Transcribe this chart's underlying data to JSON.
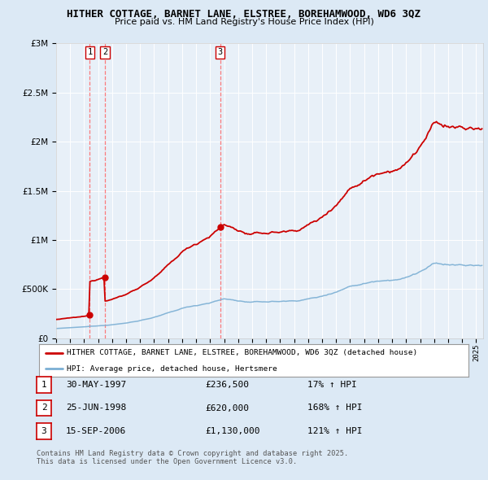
{
  "title1": "HITHER COTTAGE, BARNET LANE, ELSTREE, BOREHAMWOOD, WD6 3QZ",
  "title2": "Price paid vs. HM Land Registry's House Price Index (HPI)",
  "legend_line1": "HITHER COTTAGE, BARNET LANE, ELSTREE, BOREHAMWOOD, WD6 3QZ (detached house)",
  "legend_line2": "HPI: Average price, detached house, Hertsmere",
  "footer1": "Contains HM Land Registry data © Crown copyright and database right 2025.",
  "footer2": "This data is licensed under the Open Government Licence v3.0.",
  "transactions": [
    {
      "num": 1,
      "date": "30-MAY-1997",
      "price": 236500,
      "pct": "17% ↑ HPI",
      "x": 1997.41
    },
    {
      "num": 2,
      "date": "25-JUN-1998",
      "price": 620000,
      "pct": "168% ↑ HPI",
      "x": 1998.48
    },
    {
      "num": 3,
      "date": "15-SEP-2006",
      "price": 1130000,
      "pct": "121% ↑ HPI",
      "x": 2006.71
    }
  ],
  "ylim": [
    0,
    3000000
  ],
  "xlim_start": 1995.0,
  "xlim_end": 2025.5,
  "bg_color": "#dce9f5",
  "plot_bg": "#e8f0f8",
  "grid_color": "#ffffff",
  "red_line_color": "#cc0000",
  "blue_line_color": "#7bafd4",
  "dashed_color": "#ff6666"
}
